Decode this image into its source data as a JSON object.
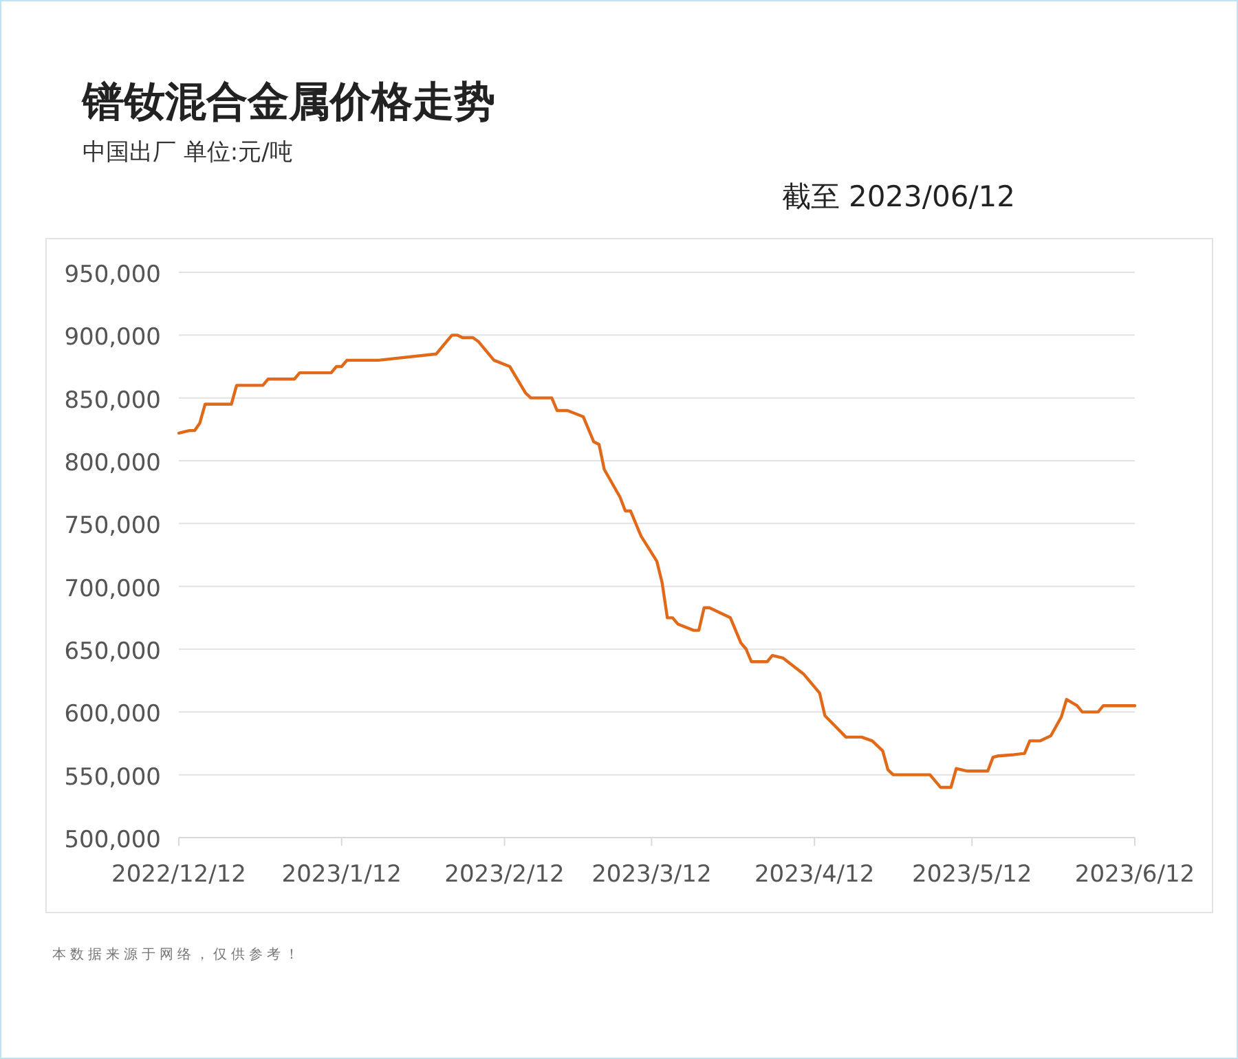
{
  "chart_data": {
    "type": "line",
    "title": "镨钕混合金属价格走势",
    "subtitle": "中国出厂  单位:元/吨",
    "annotations": [
      "截至 2023/06/12",
      "本数据来源于网络，仅供参考！"
    ],
    "x": [
      "2022-12-12",
      "2022-12-14",
      "2022-12-15",
      "2022-12-16",
      "2022-12-17",
      "2022-12-22",
      "2022-12-23",
      "2022-12-28",
      "2022-12-29",
      "2023-01-03",
      "2023-01-04",
      "2023-01-10",
      "2023-01-11",
      "2023-01-12",
      "2023-01-13",
      "2023-01-19",
      "2023-01-30",
      "2023-02-01",
      "2023-02-02",
      "2023-02-03",
      "2023-02-04",
      "2023-02-06",
      "2023-02-07",
      "2023-02-10",
      "2023-02-13",
      "2023-02-16",
      "2023-02-17",
      "2023-02-21",
      "2023-02-22",
      "2023-02-24",
      "2023-02-27",
      "2023-03-01",
      "2023-03-02",
      "2023-03-03",
      "2023-03-06",
      "2023-03-07",
      "2023-03-08",
      "2023-03-10",
      "2023-03-13",
      "2023-03-14",
      "2023-03-15",
      "2023-03-16",
      "2023-03-17",
      "2023-03-20",
      "2023-03-21",
      "2023-03-22",
      "2023-03-23",
      "2023-03-25",
      "2023-03-27",
      "2023-03-29",
      "2023-03-30",
      "2023-03-31",
      "2023-04-03",
      "2023-04-04",
      "2023-04-06",
      "2023-04-10",
      "2023-04-13",
      "2023-04-14",
      "2023-04-18",
      "2023-04-21",
      "2023-04-23",
      "2023-04-25",
      "2023-04-26",
      "2023-04-27",
      "2023-05-04",
      "2023-05-06",
      "2023-05-08",
      "2023-05-09",
      "2023-05-11",
      "2023-05-15",
      "2023-05-16",
      "2023-05-17",
      "2023-05-20",
      "2023-05-22",
      "2023-05-23",
      "2023-05-25",
      "2023-05-27",
      "2023-05-29",
      "2023-05-30",
      "2023-06-01",
      "2023-06-02",
      "2023-06-05",
      "2023-06-06",
      "2023-06-12"
    ],
    "series": [
      {
        "color": "#e06a1a",
        "values": [
          822000,
          824000,
          824000,
          830000,
          845000,
          845000,
          860000,
          860000,
          865000,
          865000,
          870000,
          870000,
          875000,
          875000,
          880000,
          880000,
          885000,
          895000,
          900000,
          900000,
          898000,
          898000,
          895000,
          880000,
          875000,
          854000,
          850000,
          850000,
          840000,
          840000,
          835000,
          815000,
          813000,
          793000,
          771000,
          760000,
          760000,
          740000,
          720000,
          703000,
          675000,
          675000,
          670000,
          665000,
          665000,
          683000,
          683000,
          679000,
          675000,
          655000,
          650000,
          640000,
          640000,
          645000,
          643000,
          630000,
          615000,
          597000,
          580000,
          580000,
          577000,
          569000,
          554000,
          550000,
          550000,
          540000,
          540000,
          555000,
          553000,
          553000,
          564000,
          565000,
          566000,
          567000,
          577000,
          577000,
          581000,
          596000,
          610000,
          605000,
          600000,
          600000,
          605000,
          605000
        ]
      }
    ],
    "xlim": [
      "2022-12-12",
      "2023-06-12"
    ],
    "xticks": [
      {
        "value": "2022-12-12",
        "label": "2022/12/12"
      },
      {
        "value": "2023-01-12",
        "label": "2023/1/12"
      },
      {
        "value": "2023-02-12",
        "label": "2023/2/12"
      },
      {
        "value": "2023-03-12",
        "label": "2023/3/12"
      },
      {
        "value": "2023-04-12",
        "label": "2023/4/12"
      },
      {
        "value": "2023-05-12",
        "label": "2023/5/12"
      },
      {
        "value": "2023-06-12",
        "label": "2023/6/12"
      }
    ],
    "ylim": [
      500000,
      950000
    ],
    "yticks": [
      {
        "value": 500000,
        "label": "500,000"
      },
      {
        "value": 550000,
        "label": "550,000"
      },
      {
        "value": 600000,
        "label": "600,000"
      },
      {
        "value": 650000,
        "label": "650,000"
      },
      {
        "value": 700000,
        "label": "700,000"
      },
      {
        "value": 750000,
        "label": "750,000"
      },
      {
        "value": 800000,
        "label": "800,000"
      },
      {
        "value": 850000,
        "label": "850,000"
      },
      {
        "value": 900000,
        "label": "900,000"
      },
      {
        "value": 950000,
        "label": "950,000"
      }
    ],
    "grid": "y",
    "marker": "none",
    "line_style": "solid"
  }
}
